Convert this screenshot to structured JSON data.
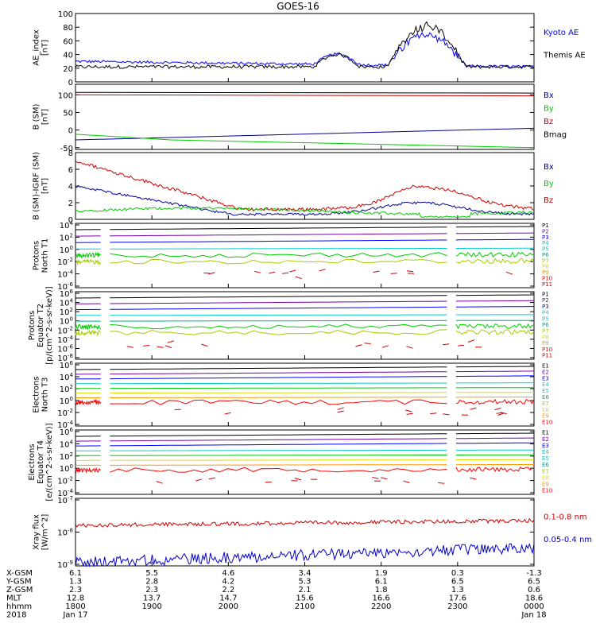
{
  "title": "GOES-16",
  "colors": {
    "black": "#000000",
    "blue": "#0000ff",
    "green": "#00cc00",
    "red": "#ff0000",
    "darkred": "#cc0000",
    "navy": "#000099",
    "purple": "#7700aa",
    "cyan": "#00cccc",
    "teal": "#00aa88",
    "yellowgreen": "#aacc00",
    "yellow": "#dddd00",
    "orange": "#ff9900"
  },
  "chart_data": [
    {
      "id": "ae",
      "type": "line",
      "ylabel": [
        "AE_index",
        "[nT]"
      ],
      "ylim": [
        0,
        100
      ],
      "ticks": [
        "0",
        "20",
        "40",
        "60",
        "80",
        "100"
      ],
      "series": [
        {
          "name": "Kyoto AE",
          "color": "#0000ff"
        },
        {
          "name": "Themis AE",
          "color": "#000000"
        }
      ]
    },
    {
      "id": "bsm",
      "type": "line",
      "ylabel": [
        "B (SM)",
        "[nT]"
      ],
      "ylim": [
        -55,
        130
      ],
      "ticks": [
        "-50",
        "0",
        "50",
        "100"
      ],
      "series": [
        {
          "name": "Bx",
          "color": "#000099"
        },
        {
          "name": "By",
          "color": "#00cc00"
        },
        {
          "name": "Bz",
          "color": "#cc0000"
        },
        {
          "name": "Bmag",
          "color": "#000000"
        }
      ]
    },
    {
      "id": "bsmigrf",
      "type": "line",
      "ylabel": [
        "B (SM)-IGRF (SM)",
        "[nT]"
      ],
      "ylim": [
        0,
        8
      ],
      "ticks": [
        "0",
        "2",
        "4",
        "6",
        "8"
      ],
      "series": [
        {
          "name": "Bx",
          "color": "#000099"
        },
        {
          "name": "By",
          "color": "#00cc00"
        },
        {
          "name": "Bz",
          "color": "#cc0000"
        }
      ]
    },
    {
      "id": "protons1",
      "type": "line",
      "ylabel": [
        "Protons",
        "North T1"
      ],
      "ticks": [
        "10^4",
        "10^2",
        "10^0",
        "10^-2",
        "10^-4",
        "10^-6"
      ],
      "legend": [
        "P1",
        "P2",
        "P3",
        "P4",
        "P5",
        "P6",
        "P7",
        "P8",
        "P9",
        "P10",
        "P11"
      ]
    },
    {
      "id": "protons2",
      "type": "line",
      "ylabel": [
        "Protons",
        "Equator T2",
        "[p/(cm^2-s-sr-keV)]"
      ],
      "ticks": [
        "10^6",
        "10^4",
        "10^2",
        "10^0",
        "10^-2",
        "10^-4",
        "10^-6",
        "10^-8"
      ],
      "legend": [
        "P1",
        "P2",
        "P3",
        "P4",
        "P5",
        "P6",
        "P7",
        "P8",
        "P9",
        "P10",
        "P11"
      ]
    },
    {
      "id": "electrons1",
      "type": "line",
      "ylabel": [
        "Electrons",
        "North T3"
      ],
      "ticks": [
        "10^6",
        "10^4",
        "10^2",
        "10^0",
        "10^-2",
        "10^-4"
      ],
      "legend": [
        "E1",
        "E2",
        "E3",
        "E4",
        "E5",
        "E6",
        "E7",
        "E8",
        "E9",
        "E10"
      ]
    },
    {
      "id": "electrons2",
      "type": "line",
      "ylabel": [
        "Electrons",
        "Equator T4",
        "[e/(cm^2-s-sr-keV)]"
      ],
      "ticks": [
        "10^6",
        "10^4",
        "10^2",
        "10^0",
        "10^-2",
        "10^-4"
      ],
      "legend": [
        "E1",
        "E2",
        "E3",
        "E4",
        "E5",
        "E6",
        "E7",
        "E8",
        "E9",
        "E10"
      ]
    },
    {
      "id": "xray",
      "type": "line",
      "ylabel": [
        "Xray flux",
        "[W/m^2]"
      ],
      "ticks": [
        "10^-7",
        "10^-8",
        "10^-9"
      ],
      "series": [
        {
          "name": "0.1-0.8 nm",
          "color": "#cc0000"
        },
        {
          "name": "0.05-0.4 nm",
          "color": "#0000cc"
        }
      ]
    }
  ],
  "xaxis": {
    "row_labels": [
      "X-GSM",
      "Y-GSM",
      "Z-GSM",
      "MLT",
      "hhmm",
      "2018"
    ],
    "columns": [
      [
        "6.1",
        "1.3",
        "2.3",
        "12.8",
        "1800",
        "Jan 17"
      ],
      [
        "5.5",
        "2.8",
        "2.3",
        "13.7",
        "1900",
        ""
      ],
      [
        "4.6",
        "4.2",
        "2.2",
        "14.7",
        "2000",
        ""
      ],
      [
        "3.4",
        "5.3",
        "2.1",
        "15.6",
        "2100",
        ""
      ],
      [
        "1.9",
        "6.1",
        "1.8",
        "16.6",
        "2200",
        ""
      ],
      [
        "0.3",
        "6.5",
        "1.3",
        "17.6",
        "2300",
        ""
      ],
      [
        "-1.3",
        "6.5",
        "0.6",
        "18.6",
        "0000",
        "Jan 18"
      ]
    ]
  }
}
